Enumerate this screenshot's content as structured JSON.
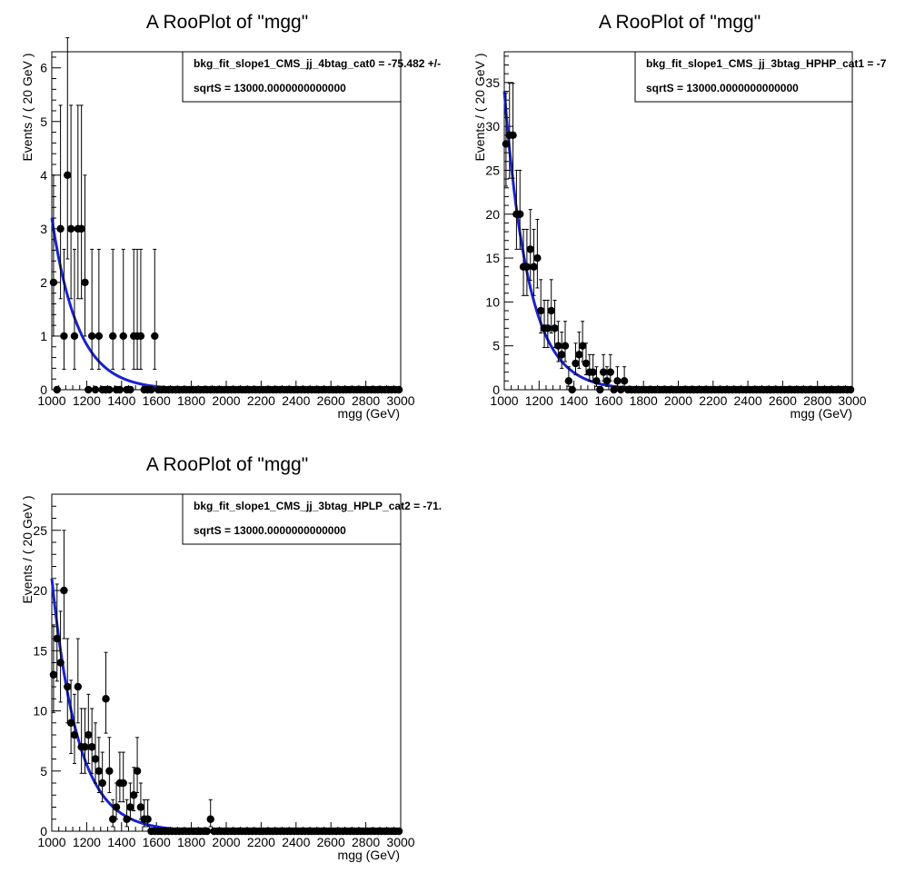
{
  "colors": {
    "curve": "#1a23cc",
    "points": "#000000",
    "frame": "#000000"
  },
  "chart_data": [
    {
      "type": "scatter",
      "title": "A RooPlot of \"mgg\"",
      "xlabel": "mgg (GeV)",
      "ylabel": "Events / ( 20 GeV )",
      "xlim": [
        1000,
        3000
      ],
      "ylim": [
        0,
        6.3
      ],
      "xticks": [
        1000,
        1200,
        1400,
        1600,
        1800,
        2000,
        2200,
        2400,
        2600,
        2800,
        3000
      ],
      "yticks": [
        0,
        1,
        2,
        3,
        4,
        5,
        6
      ],
      "legend": {
        "placement": "top-right",
        "lines": [
          "bkg_fit_slope1_CMS_jj_4btag_cat0 = -75.482 +/-",
          "sqrtS =  13000.0000000000000"
        ]
      },
      "series": [
        {
          "kind": "points",
          "bin_width": 20,
          "y": [
            2,
            0,
            3,
            1,
            4,
            3,
            1,
            3,
            3,
            2,
            0,
            1,
            0,
            1,
            0,
            0,
            0,
            1,
            0,
            0,
            1,
            0,
            0,
            1,
            1,
            1,
            0,
            0,
            0,
            1,
            0,
            0,
            0,
            0,
            0,
            0,
            0,
            0,
            0,
            0,
            0,
            0,
            0,
            0,
            0,
            0,
            0,
            0,
            0,
            0,
            0,
            0,
            0,
            0,
            0,
            0,
            0,
            0,
            0,
            0,
            0,
            0,
            0,
            0,
            0,
            0,
            0,
            0,
            0,
            0,
            0,
            0,
            0,
            0,
            0,
            0,
            0,
            0,
            0,
            0,
            0,
            0,
            0,
            0,
            0,
            0,
            0,
            0,
            0,
            0,
            0,
            0,
            0,
            0,
            0,
            0,
            0,
            0,
            0,
            0
          ]
        },
        {
          "kind": "curve",
          "function": "exponential",
          "n0": 3.2,
          "decay_gev": 150
        }
      ]
    },
    {
      "type": "scatter",
      "title": "A RooPlot of \"mgg\"",
      "xlabel": "mgg (GeV)",
      "ylabel": "Events / ( 20 GeV )",
      "xlim": [
        1000,
        3000
      ],
      "ylim": [
        0,
        38.5
      ],
      "xticks": [
        1000,
        1200,
        1400,
        1600,
        1800,
        2000,
        2200,
        2400,
        2600,
        2800,
        3000
      ],
      "yticks": [
        0,
        5,
        10,
        15,
        20,
        25,
        30,
        35
      ],
      "legend": {
        "placement": "top-right",
        "lines": [
          "bkg_fit_slope1_CMS_jj_3btag_HPHP_cat1 = -7",
          "sqrtS =  13000.0000000000000"
        ]
      },
      "series": [
        {
          "kind": "points",
          "bin_width": 20,
          "y": [
            28,
            29,
            29,
            20,
            20,
            14,
            14,
            16,
            14,
            15,
            9,
            7,
            7,
            9,
            7,
            5,
            4,
            5,
            1,
            0,
            3,
            4,
            5,
            3,
            2,
            2,
            1,
            0,
            2,
            1,
            2,
            0,
            1,
            0,
            1,
            0,
            0,
            0,
            0,
            0,
            0,
            0,
            0,
            0,
            0,
            0,
            0,
            0,
            0,
            0,
            0,
            0,
            0,
            0,
            0,
            0,
            0,
            0,
            0,
            0,
            0,
            0,
            0,
            0,
            0,
            0,
            0,
            0,
            0,
            0,
            0,
            0,
            0,
            0,
            0,
            0,
            0,
            0,
            0,
            0,
            0,
            0,
            0,
            0,
            0,
            0,
            0,
            0,
            0,
            0,
            0,
            0,
            0,
            0,
            0,
            0,
            0,
            0,
            0,
            0
          ]
        },
        {
          "kind": "curve",
          "function": "exponential",
          "n0": 34,
          "decay_gev": 140
        }
      ]
    },
    {
      "type": "scatter",
      "title": "A RooPlot of \"mgg\"",
      "xlabel": "mgg (GeV)",
      "ylabel": "Events / ( 20 GeV )",
      "xlim": [
        1000,
        3000
      ],
      "ylim": [
        0,
        28
      ],
      "xticks": [
        1000,
        1200,
        1400,
        1600,
        1800,
        2000,
        2200,
        2400,
        2600,
        2800,
        3000
      ],
      "yticks": [
        0,
        5,
        10,
        15,
        20,
        25
      ],
      "legend": {
        "placement": "top-right",
        "lines": [
          "bkg_fit_slope1_CMS_jj_3btag_HPLP_cat2 = -71.",
          "sqrtS =  13000.0000000000000"
        ]
      },
      "series": [
        {
          "kind": "points",
          "bin_width": 20,
          "y": [
            13,
            16,
            14,
            20,
            12,
            9,
            8,
            12,
            7,
            7,
            8,
            7,
            6,
            5,
            4,
            11,
            5,
            1,
            2,
            4,
            4,
            1,
            2,
            3,
            5,
            2,
            1,
            1,
            0,
            0,
            0,
            0,
            0,
            0,
            0,
            0,
            0,
            0,
            0,
            0,
            0,
            0,
            0,
            0,
            0,
            1,
            0,
            0,
            0,
            0,
            0,
            0,
            0,
            0,
            0,
            0,
            0,
            0,
            0,
            0,
            0,
            0,
            0,
            0,
            0,
            0,
            0,
            0,
            0,
            0,
            0,
            0,
            0,
            0,
            0,
            0,
            0,
            0,
            0,
            0,
            0,
            0,
            0,
            0,
            0,
            0,
            0,
            0,
            0,
            0,
            0,
            0,
            0,
            0,
            0,
            0,
            0,
            0,
            0,
            0
          ]
        },
        {
          "kind": "curve",
          "function": "exponential",
          "n0": 21,
          "decay_gev": 150
        }
      ]
    }
  ]
}
